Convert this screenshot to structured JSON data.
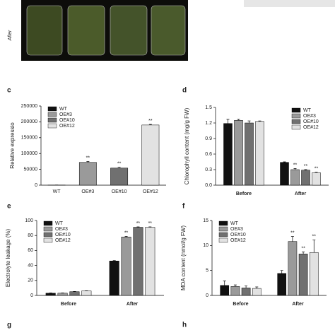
{
  "photo_label": "After",
  "other_panels": [
    "g",
    "h"
  ],
  "chart_data": [
    {
      "type": "bar",
      "panel": "c",
      "ylabel": "Relative expressio",
      "categories": [
        "WT",
        "OE#3",
        "OE#10",
        "OE#12"
      ],
      "values": [
        500,
        72000,
        54000,
        190000
      ],
      "errors": [
        200,
        2500,
        2500,
        2000
      ],
      "colors": [
        "#111111",
        "#9a9a9a",
        "#707070",
        "#e2e2e2"
      ],
      "annotations": [
        {
          "index": 1,
          "text": "**"
        },
        {
          "index": 2,
          "text": "**"
        },
        {
          "index": 3,
          "text": "**"
        }
      ],
      "ylim": [
        0,
        250000
      ],
      "yticks": [
        0,
        50000,
        100000,
        150000,
        200000,
        250000
      ],
      "legend": "top-left"
    },
    {
      "type": "grouped_bar",
      "panel": "d",
      "ylabel": "Chlorophyll content (mg/g FW)",
      "categories": [
        "Before",
        "After"
      ],
      "series": [
        {
          "name": "WT",
          "color": "#111111",
          "values": [
            1.19,
            0.44
          ],
          "errors": [
            0.08,
            0.01
          ]
        },
        {
          "name": "OE#3",
          "color": "#9a9a9a",
          "values": [
            1.25,
            0.3
          ],
          "errors": [
            0.02,
            0.02
          ]
        },
        {
          "name": "OE#10",
          "color": "#707070",
          "values": [
            1.2,
            0.29
          ],
          "errors": [
            0.04,
            0.01
          ]
        },
        {
          "name": "OE#12",
          "color": "#e2e2e2",
          "values": [
            1.23,
            0.24
          ],
          "errors": [
            0.01,
            0.01
          ]
        }
      ],
      "annotations": [
        {
          "group": 1,
          "series": 1,
          "text": "**"
        },
        {
          "group": 1,
          "series": 2,
          "text": "**"
        },
        {
          "group": 1,
          "series": 3,
          "text": "**"
        }
      ],
      "ylim": [
        0,
        1.5
      ],
      "yticks": [
        {
          "value": 0,
          "label": "0.0"
        },
        0.3,
        0.6,
        0.9,
        1.2,
        1.5
      ],
      "legend": "top-right"
    },
    {
      "type": "grouped_bar",
      "panel": "e",
      "ylabel": "Electrolyte leakage (%)",
      "categories": [
        "Before",
        "After"
      ],
      "series": [
        {
          "name": "WT",
          "color": "#111111",
          "values": [
            3,
            46
          ],
          "errors": [
            0.3,
            0.5
          ]
        },
        {
          "name": "OE#3",
          "color": "#9a9a9a",
          "values": [
            3,
            78
          ],
          "errors": [
            0.3,
            0.8
          ]
        },
        {
          "name": "OE#10",
          "color": "#707070",
          "values": [
            5,
            91
          ],
          "errors": [
            0.3,
            0.5
          ]
        },
        {
          "name": "OE#12",
          "color": "#e2e2e2",
          "values": [
            6,
            91
          ],
          "errors": [
            0.3,
            0.5
          ]
        }
      ],
      "annotations": [
        {
          "group": 1,
          "series": 1,
          "text": "**"
        },
        {
          "group": 1,
          "series": 2,
          "text": "**"
        },
        {
          "group": 1,
          "series": 3,
          "text": "**"
        }
      ],
      "ylim": [
        0,
        100
      ],
      "yticks": [
        0,
        20,
        40,
        60,
        80,
        100
      ],
      "legend": "top-left"
    },
    {
      "type": "grouped_bar",
      "panel": "f",
      "ylabel": "MDA content (nmol/g FW)",
      "categories": [
        "Before",
        "After"
      ],
      "series": [
        {
          "name": "WT",
          "color": "#111111",
          "values": [
            2.0,
            4.4
          ],
          "errors": [
            0.9,
            0.6
          ]
        },
        {
          "name": "OE#3",
          "color": "#9a9a9a",
          "values": [
            1.8,
            10.8
          ],
          "errors": [
            0.3,
            1.0
          ]
        },
        {
          "name": "OE#10",
          "color": "#707070",
          "values": [
            1.5,
            8.3
          ],
          "errors": [
            0.4,
            0.4
          ]
        },
        {
          "name": "OE#12",
          "color": "#e2e2e2",
          "values": [
            1.4,
            8.6
          ],
          "errors": [
            0.3,
            2.5
          ]
        }
      ],
      "annotations": [
        {
          "group": 1,
          "series": 1,
          "text": "**"
        },
        {
          "group": 1,
          "series": 2,
          "text": "**"
        },
        {
          "group": 1,
          "series": 3,
          "text": "**"
        }
      ],
      "ylim": [
        0,
        15
      ],
      "yticks": [
        0,
        5,
        10,
        15
      ],
      "legend": "top-left"
    }
  ]
}
